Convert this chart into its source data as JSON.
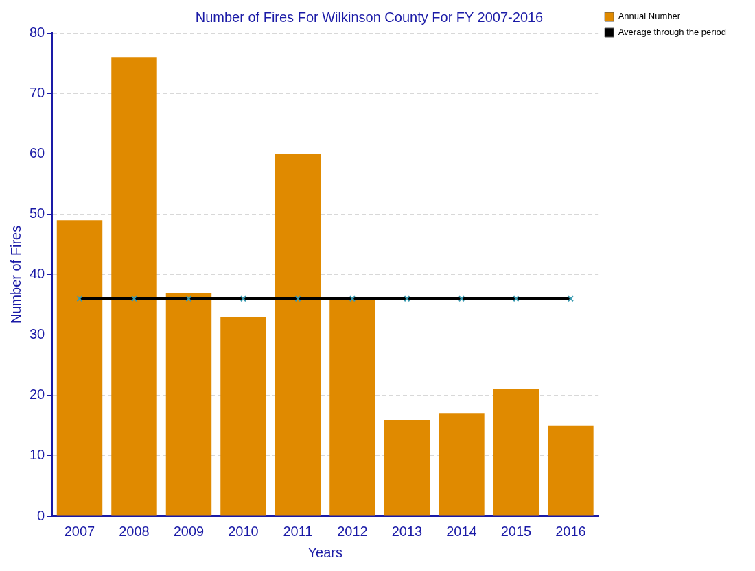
{
  "chart_data": {
    "type": "bar",
    "title": "Number of Fires For Wilkinson County For FY 2007-2016",
    "xlabel": "Years",
    "ylabel": "Number of Fires",
    "categories": [
      "2007",
      "2008",
      "2009",
      "2010",
      "2011",
      "2012",
      "2013",
      "2014",
      "2015",
      "2016"
    ],
    "series": [
      {
        "name": "Annual Number",
        "color": "#e08a00",
        "values": [
          49,
          76,
          37,
          33,
          60,
          36,
          16,
          17,
          21,
          15
        ]
      },
      {
        "name": "Average through the period",
        "type": "line",
        "color": "#000000",
        "marker": "cross",
        "values": [
          36,
          36,
          36,
          36,
          36,
          36,
          36,
          36,
          36,
          36
        ]
      }
    ],
    "ylim": [
      0,
      80
    ],
    "yticks": [
      0,
      10,
      20,
      30,
      40,
      50,
      60,
      70,
      80
    ],
    "grid": "y",
    "legend": "top right"
  }
}
